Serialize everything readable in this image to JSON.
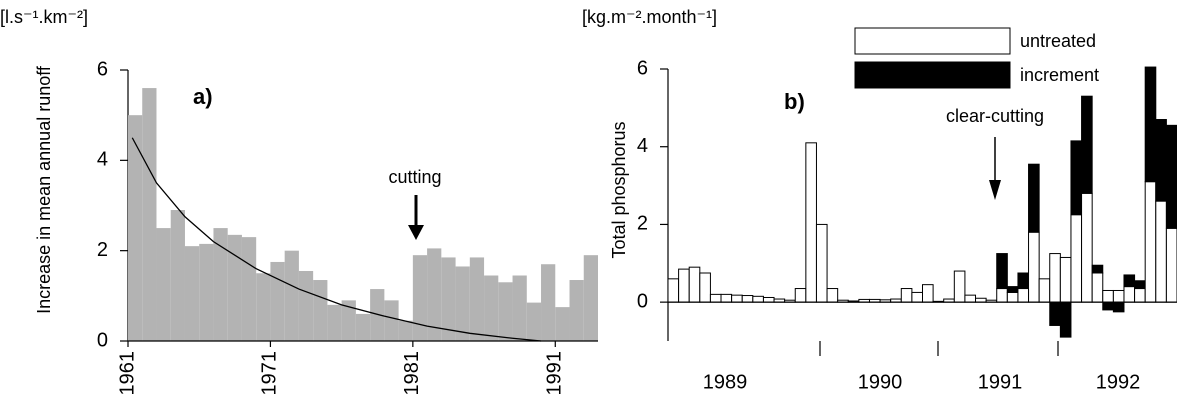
{
  "chart_data": [
    {
      "type": "bar",
      "unit_label": "[l.s⁻¹.km⁻²]",
      "y_label": "Increase in mean annual runoff",
      "annotations": [
        "a)",
        "cutting"
      ],
      "x": [
        1961,
        1962,
        1963,
        1964,
        1965,
        1966,
        1967,
        1968,
        1969,
        1970,
        1971,
        1972,
        1973,
        1974,
        1975,
        1976,
        1977,
        1978,
        1979,
        1980,
        1981,
        1982,
        1983,
        1984,
        1985,
        1986,
        1987,
        1988,
        1989,
        1990,
        1991,
        1992,
        1993
      ],
      "values": [
        5.0,
        5.6,
        2.5,
        2.9,
        2.1,
        2.15,
        2.5,
        2.35,
        2.3,
        1.5,
        1.75,
        2.0,
        1.55,
        1.35,
        0.8,
        0.9,
        0.6,
        1.15,
        0.9,
        0.45,
        1.9,
        2.05,
        1.85,
        1.65,
        1.85,
        1.45,
        1.3,
        1.45,
        0.85,
        1.7,
        0.75,
        1.35,
        1.9
      ],
      "color": "#b3b3b3",
      "trend": {
        "x": [
          1961.3,
          1963,
          1965,
          1967,
          1970,
          1973,
          1976,
          1979,
          1982,
          1985,
          1988,
          1990
        ],
        "values": [
          4.5,
          3.5,
          2.75,
          2.2,
          1.6,
          1.15,
          0.8,
          0.55,
          0.33,
          0.17,
          0.06,
          0
        ],
        "color": "#000000"
      },
      "xlim": [
        1961,
        1994
      ],
      "xticks": [
        1961,
        1971,
        1981,
        1991
      ],
      "ylim": [
        0,
        6
      ],
      "yticks": [
        0,
        2,
        4,
        6
      ]
    },
    {
      "type": "bar",
      "stacked": true,
      "unit_label": "[kg.m⁻².month⁻¹]",
      "y_label": "Total phosphorus",
      "annotations": [
        "b)",
        "clear-cutting"
      ],
      "categories": [
        null,
        null,
        null,
        null,
        null,
        null,
        null,
        null,
        null,
        null,
        null,
        null,
        null,
        null,
        null,
        null,
        null,
        null,
        null,
        null,
        null,
        null,
        null,
        null,
        null,
        null,
        null,
        null,
        null,
        null,
        null,
        null,
        null,
        null,
        null,
        null,
        null,
        null,
        null,
        null,
        null,
        null,
        null,
        null,
        null,
        null,
        null,
        null
      ],
      "year_labels": [
        "1989",
        "1990",
        "1991",
        "1992"
      ],
      "series": [
        {
          "name": "untreated",
          "color": "#ffffff",
          "values": [
            0.6,
            0.85,
            0.9,
            0.75,
            0.2,
            0.2,
            0.18,
            0.17,
            0.15,
            0.12,
            0.08,
            0.05,
            0.35,
            4.1,
            2.0,
            0.35,
            0.05,
            0.03,
            0.07,
            0.07,
            0.06,
            0.08,
            0.35,
            0.25,
            0.45,
            0.02,
            0.08,
            0.8,
            0.18,
            0.1,
            0.05,
            0.35,
            0.25,
            0.35,
            1.8,
            0.6,
            1.25,
            1.15,
            2.25,
            2.8,
            0.75,
            0.3,
            0.3,
            0.4,
            0.35,
            3.1,
            2.6,
            1.9
          ]
        },
        {
          "name": "increment",
          "color": "#000000",
          "values": [
            0,
            0,
            0,
            0,
            0,
            0,
            0,
            0,
            0,
            0,
            0,
            0,
            0,
            0,
            0,
            0,
            0,
            0,
            0,
            0,
            0,
            0,
            0,
            0,
            0,
            0,
            0,
            0,
            0,
            0,
            0,
            0.9,
            0.15,
            0.4,
            1.75,
            0,
            -0.6,
            -0.9,
            1.9,
            2.5,
            0.2,
            -0.2,
            -0.25,
            0.3,
            0.2,
            2.95,
            2.1,
            2.65
          ]
        }
      ],
      "ylim": [
        -1,
        6
      ],
      "yticks": [
        0,
        2,
        4,
        6
      ]
    }
  ]
}
